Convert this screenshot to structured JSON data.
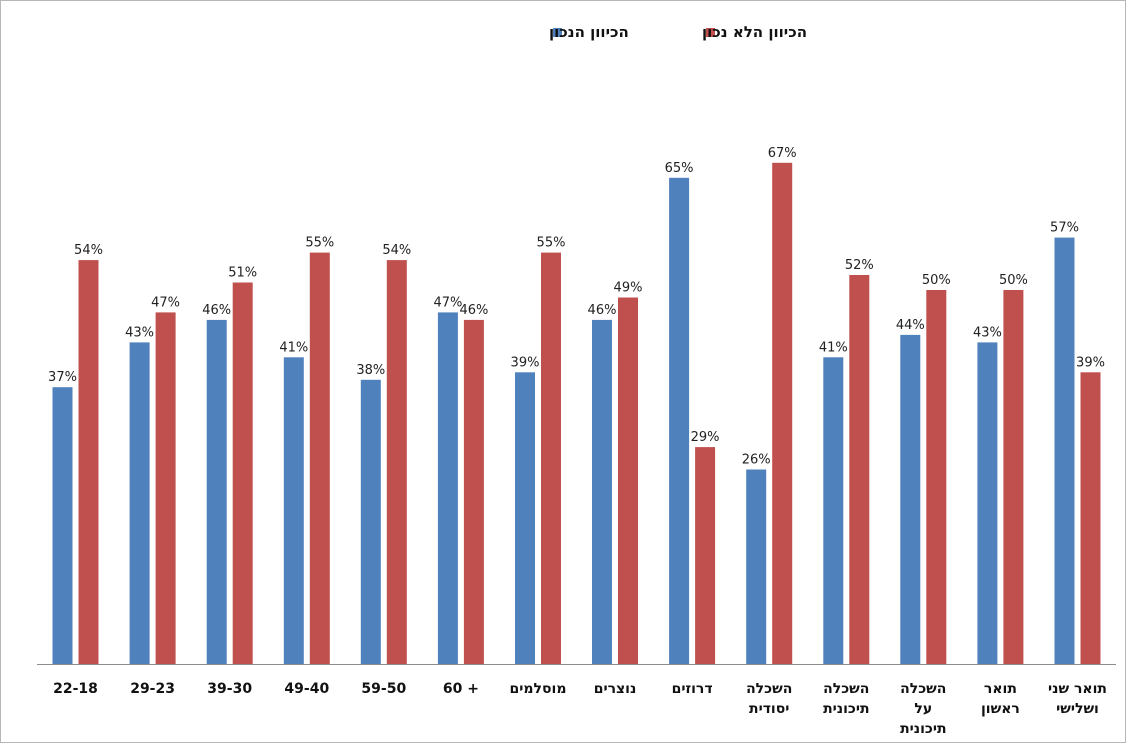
{
  "chart_data": {
    "type": "bar",
    "title": "",
    "xlabel": "",
    "ylabel": "",
    "ylim": [
      0,
      70
    ],
    "grid": false,
    "legend_position": "top",
    "categories": [
      [
        "22-18"
      ],
      [
        "29-23"
      ],
      [
        "39-30"
      ],
      [
        "49-40"
      ],
      [
        "59-50"
      ],
      [
        "60 +"
      ],
      [
        "מוסלמים"
      ],
      [
        "נוצרים"
      ],
      [
        "דרוזים"
      ],
      [
        "השכלה",
        "יסודית"
      ],
      [
        "השכלה",
        "תיכונית"
      ],
      [
        "השכלה",
        "על",
        "תיכונית"
      ],
      [
        "תואר",
        "ראשון"
      ],
      [
        "תואר שני",
        "ושלישי"
      ]
    ],
    "series": [
      {
        "name": "הכיוון הנכון",
        "color": "#4f81bd",
        "values": [
          37,
          43,
          46,
          41,
          38,
          47,
          39,
          46,
          65,
          26,
          41,
          44,
          43,
          57
        ],
        "labels": [
          "37%",
          "43%",
          "46%",
          "41%",
          "38%",
          "47%",
          "39%",
          "46%",
          "65%",
          "26%",
          "41%",
          "44%",
          "43%",
          "57%"
        ]
      },
      {
        "name": "הכיוון הלא נכון",
        "color": "#c0504d",
        "values": [
          54,
          47,
          51,
          55,
          54,
          46,
          55,
          49,
          29,
          67,
          52,
          50,
          50,
          39
        ],
        "labels": [
          "54%",
          "47%",
          "51%",
          "55%",
          "54%",
          "46%",
          "55%",
          "49%",
          "29%",
          "67%",
          "52%",
          "50%",
          "50%",
          "39%"
        ]
      }
    ]
  }
}
